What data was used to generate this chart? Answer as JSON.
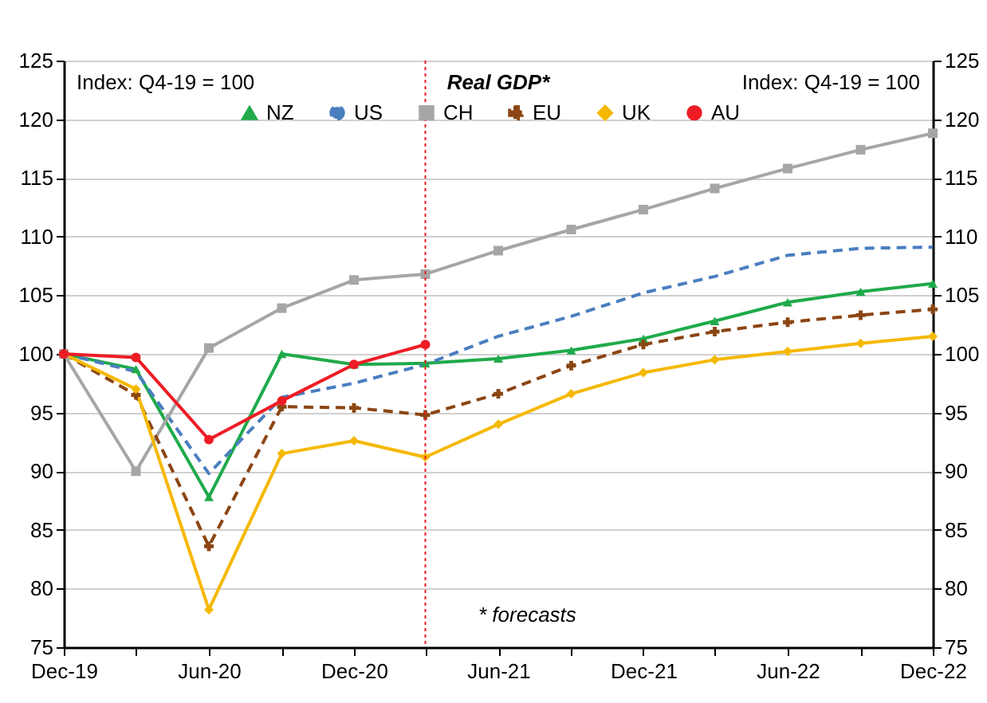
{
  "chart_data": {
    "type": "line",
    "title": "Real GDP*",
    "annotations": [
      "Index: Q4-19 = 100",
      "Index: Q4-19 = 100",
      "* forecasts"
    ],
    "x": [
      "2019-12",
      "2020-03",
      "2020-06",
      "2020-09",
      "2020-12",
      "2021-03",
      "2021-06",
      "2021-09",
      "2021-12",
      "2022-03",
      "2022-06",
      "2022-09",
      "2022-12"
    ],
    "series": [
      {
        "name": "NZ",
        "color": "#1faa4a",
        "marker": "triangle",
        "line_style": "solid",
        "values": [
          100,
          98.7,
          87.8,
          100,
          99.1,
          99.2,
          99.6,
          100.3,
          101.3,
          102.8,
          104.4,
          105.3,
          106
        ]
      },
      {
        "name": "US",
        "color": "#4a7ebf",
        "marker": "none",
        "line_style": "dashed",
        "values": [
          100,
          98.5,
          89.8,
          96.3,
          97.5,
          99.1,
          101.5,
          103.2,
          105.2,
          106.6,
          108.4,
          109.0,
          109.1
        ]
      },
      {
        "name": "CH",
        "color": "#a6a6a6",
        "marker": "square",
        "line_style": "solid",
        "values": [
          100,
          90,
          100.5,
          103.9,
          106.3,
          106.8,
          108.8,
          110.6,
          112.3,
          114.1,
          115.8,
          117.4,
          118.8
        ]
      },
      {
        "name": "EU",
        "color": "#8b4513",
        "marker": "cross",
        "line_style": "dashed",
        "values": [
          100,
          96.5,
          83.6,
          95.5,
          95.4,
          94.8,
          96.6,
          99.0,
          100.8,
          101.9,
          102.7,
          103.3,
          103.8
        ]
      },
      {
        "name": "UK",
        "color": "#f5b800",
        "marker": "diamond",
        "line_style": "solid",
        "values": [
          100,
          97.0,
          78.2,
          91.5,
          92.6,
          91.2,
          94.0,
          96.6,
          98.4,
          99.5,
          100.2,
          100.9,
          101.5
        ]
      },
      {
        "name": "AU",
        "color": "#ee1c25",
        "marker": "circle",
        "line_style": "solid",
        "values": [
          100,
          99.7,
          92.7,
          96.0,
          99.1,
          100.8,
          null,
          null,
          null,
          null,
          null,
          null,
          null
        ]
      }
    ],
    "xlim": [
      "2019-12",
      "2022-12"
    ],
    "xticks": [
      {
        "value": "2019-12",
        "label": "Dec-19"
      },
      {
        "value": "2020-03",
        "label": null
      },
      {
        "value": "2020-06",
        "label": "Jun-20"
      },
      {
        "value": "2020-09",
        "label": null
      },
      {
        "value": "2020-12",
        "label": "Dec-20"
      },
      {
        "value": "2021-03",
        "label": null
      },
      {
        "value": "2021-06",
        "label": "Jun-21"
      },
      {
        "value": "2021-09",
        "label": null
      },
      {
        "value": "2021-12",
        "label": "Dec-21"
      },
      {
        "value": "2022-03",
        "label": null
      },
      {
        "value": "2022-06",
        "label": "Jun-22"
      },
      {
        "value": "2022-09",
        "label": null
      },
      {
        "value": "2022-12",
        "label": "Dec-22"
      }
    ],
    "ylim": [
      75,
      125
    ],
    "yticks": [
      75,
      80,
      85,
      90,
      95,
      100,
      105,
      110,
      115,
      120,
      125
    ],
    "y2lim": [
      75,
      125
    ],
    "y2ticks": [
      75,
      80,
      85,
      90,
      95,
      100,
      105,
      110,
      115,
      120,
      125
    ],
    "ref_lines": [
      {
        "axis": "x",
        "value": "2021-03",
        "color": "#ee1c25",
        "line_style": "dotted"
      }
    ],
    "grid": "y",
    "legend": "top"
  }
}
